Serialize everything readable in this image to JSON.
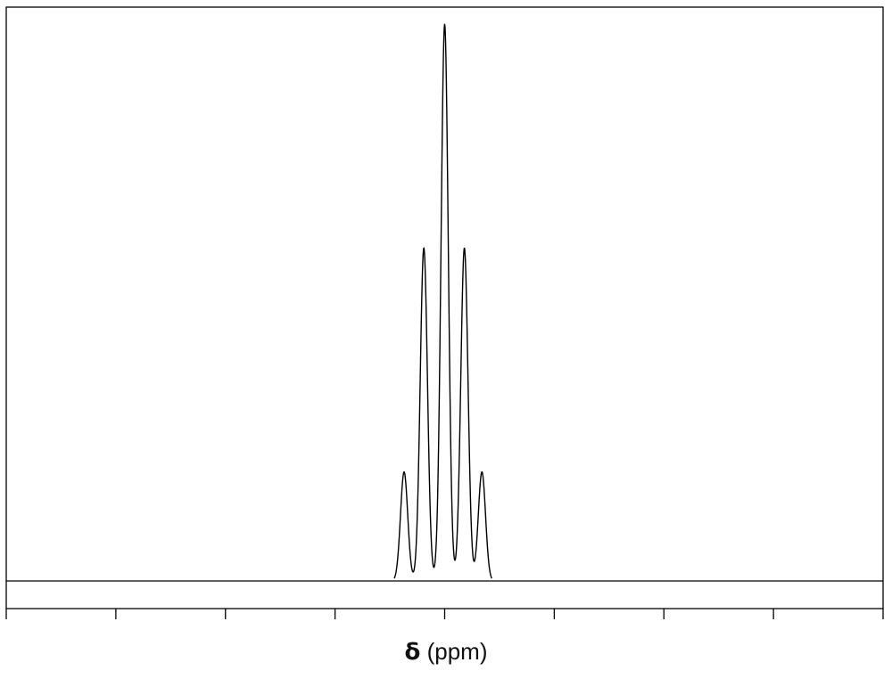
{
  "chart_data": {
    "type": "line",
    "title": "",
    "xlabel_symbol": "δ",
    "xlabel_unit": "(ppm)",
    "ylabel": "",
    "grid": false,
    "legend": "none",
    "xlim": [
      0,
      8
    ],
    "x_ticks": [
      0,
      1,
      2,
      3,
      4,
      5,
      6,
      7,
      8
    ],
    "tick_labels_shown": false,
    "peak_shape": "gaussian",
    "peak_width": 0.033,
    "ylim": [
      0,
      1.0
    ],
    "peaks": [
      {
        "x": 3.63,
        "height": 0.19
      },
      {
        "x": 3.81,
        "height": 0.58
      },
      {
        "x": 4.0,
        "height": 0.97
      },
      {
        "x": 4.18,
        "height": 0.58
      },
      {
        "x": 4.34,
        "height": 0.19
      }
    ],
    "colors": {
      "line": "#000000",
      "frame": "#000000"
    }
  }
}
